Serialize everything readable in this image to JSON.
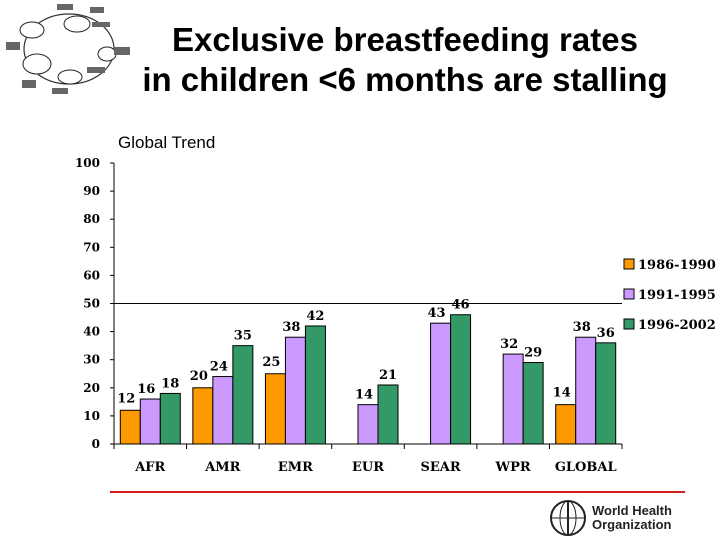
{
  "slide": {
    "title_line1": "Exclusive breastfeeding rates",
    "title_line2": "in children <6 months are stalling",
    "subtitle": "Global Trend",
    "logo_text": "World Health Organization"
  },
  "chart_data": {
    "type": "bar",
    "title": "",
    "xlabel": "",
    "ylabel": "",
    "ylim": [
      0,
      100
    ],
    "yticks": [
      0,
      10,
      20,
      30,
      40,
      50,
      60,
      70,
      80,
      90,
      100
    ],
    "categories": [
      "AFR",
      "AMR",
      "EMR",
      "EUR",
      "SEAR",
      "WPR",
      "GLOBAL"
    ],
    "series": [
      {
        "name": "1986-1990",
        "color": "#ff9900",
        "values": [
          12,
          20,
          25,
          null,
          null,
          null,
          14
        ]
      },
      {
        "name": "1991-1995",
        "color": "#cc99ff",
        "values": [
          16,
          24,
          38,
          14,
          43,
          32,
          38
        ]
      },
      {
        "name": "1996-2002",
        "color": "#339966",
        "values": [
          18,
          35,
          42,
          21,
          46,
          29,
          36
        ]
      }
    ],
    "reference_line": 50,
    "legend": "right",
    "grid": false
  }
}
